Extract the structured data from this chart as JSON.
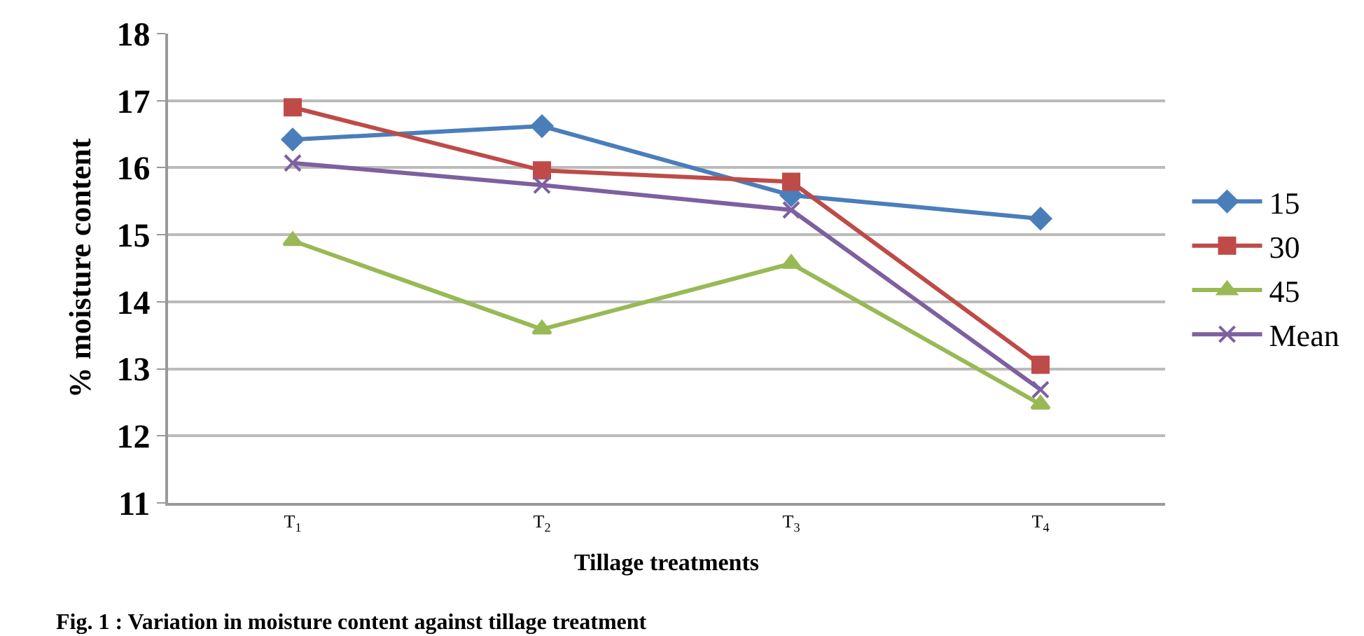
{
  "chart_data": {
    "type": "line",
    "xlabel": "Tillage treatments",
    "ylabel": "% moisture content",
    "categories": [
      "T$_{1}$",
      "T$_{2}$",
      "T$_{3}$",
      "T$_{4}$"
    ],
    "series": [
      {
        "name": "15",
        "color": "#4a7ebb",
        "marker": "diamond",
        "values": [
          16.42,
          16.62,
          15.59,
          15.24
        ]
      },
      {
        "name": "30",
        "color": "#be4b48",
        "marker": "square",
        "values": [
          16.9,
          15.96,
          15.79,
          13.06
        ]
      },
      {
        "name": "45",
        "color": "#98b954",
        "marker": "triangle",
        "values": [
          14.91,
          13.59,
          14.57,
          12.47
        ]
      },
      {
        "name": "Mean",
        "color": "#7d60a0",
        "marker": "cross",
        "values": [
          16.07,
          15.74,
          15.37,
          12.69
        ]
      }
    ],
    "ylim": [
      11,
      18
    ],
    "yticks": [
      11,
      12,
      13,
      14,
      15,
      16,
      17,
      18
    ],
    "grid": "y",
    "legend": "right",
    "annotations": [
      "Fig. 1 : Variation in moisture content against tillage treatment"
    ]
  }
}
